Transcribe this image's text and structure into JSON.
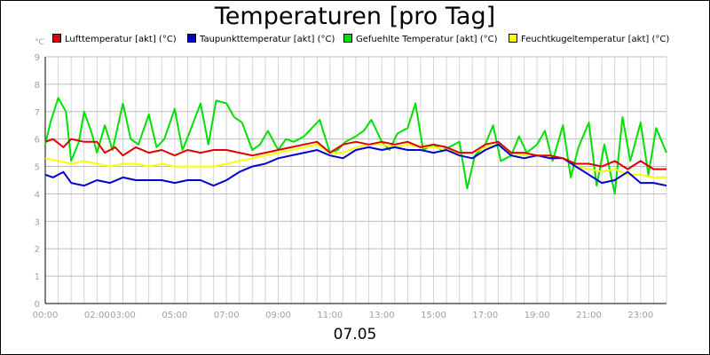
{
  "chart_data": {
    "type": "line",
    "title": "Temperaturen [pro Tag]",
    "y_unit": "°C",
    "date": "07.05",
    "ylim": [
      0,
      9
    ],
    "y_ticks": [
      "0",
      "1",
      "2",
      "3",
      "4",
      "5",
      "6",
      "7",
      "8",
      "9"
    ],
    "xlim": [
      0,
      24
    ],
    "x_ticks": [
      {
        "label": "00:00",
        "at": 0
      },
      {
        "label": "02:00",
        "at": 2
      },
      {
        "label": "03:00",
        "at": 3
      },
      {
        "label": "05:00",
        "at": 5
      },
      {
        "label": "07:00",
        "at": 7
      },
      {
        "label": "09:00",
        "at": 9
      },
      {
        "label": "11:00",
        "at": 11
      },
      {
        "label": "13:00",
        "at": 13
      },
      {
        "label": "15:00",
        "at": 15
      },
      {
        "label": "17:00",
        "at": 17
      },
      {
        "label": "19:00",
        "at": 19
      },
      {
        "label": "21:00",
        "at": 21
      },
      {
        "label": "23:00",
        "at": 23
      }
    ],
    "grid": true,
    "legend_position": "top",
    "series": [
      {
        "name": "Lufttemperatur [akt] (°C)",
        "color": "#e00000",
        "x": [
          0,
          0.3,
          0.7,
          1,
          1.5,
          2,
          2.3,
          2.7,
          3,
          3.5,
          4,
          4.5,
          5,
          5.5,
          6,
          6.5,
          7,
          7.5,
          8,
          8.5,
          9,
          9.5,
          10,
          10.5,
          11,
          11.5,
          12,
          12.5,
          13,
          13.5,
          14,
          14.5,
          15,
          15.5,
          16,
          16.5,
          17,
          17.5,
          18,
          18.5,
          19,
          19.5,
          20,
          20.5,
          21,
          21.5,
          22,
          22.5,
          23,
          23.5,
          24
        ],
        "y": [
          5.9,
          6.0,
          5.7,
          6.0,
          5.9,
          5.9,
          5.5,
          5.7,
          5.4,
          5.7,
          5.5,
          5.6,
          5.4,
          5.6,
          5.5,
          5.6,
          5.6,
          5.5,
          5.4,
          5.5,
          5.6,
          5.7,
          5.8,
          5.9,
          5.5,
          5.8,
          5.9,
          5.8,
          5.9,
          5.8,
          5.9,
          5.7,
          5.8,
          5.7,
          5.5,
          5.5,
          5.8,
          5.9,
          5.5,
          5.5,
          5.4,
          5.4,
          5.3,
          5.1,
          5.1,
          5.0,
          5.2,
          4.9,
          5.2,
          4.9,
          4.9
        ]
      },
      {
        "name": "Taupunkttemperatur [akt] (°C)",
        "color": "#0000d0",
        "x": [
          0,
          0.3,
          0.7,
          1,
          1.5,
          2,
          2.5,
          3,
          3.5,
          4,
          4.5,
          5,
          5.5,
          6,
          6.5,
          7,
          7.5,
          8,
          8.5,
          9,
          9.5,
          10,
          10.5,
          11,
          11.5,
          12,
          12.5,
          13,
          13.5,
          14,
          14.5,
          15,
          15.5,
          16,
          16.5,
          17,
          17.5,
          18,
          18.5,
          19,
          19.5,
          20,
          20.5,
          21,
          21.5,
          22,
          22.5,
          23,
          23.5,
          24
        ],
        "y": [
          4.7,
          4.6,
          4.8,
          4.4,
          4.3,
          4.5,
          4.4,
          4.6,
          4.5,
          4.5,
          4.5,
          4.4,
          4.5,
          4.5,
          4.3,
          4.5,
          4.8,
          5.0,
          5.1,
          5.3,
          5.4,
          5.5,
          5.6,
          5.4,
          5.3,
          5.6,
          5.7,
          5.6,
          5.7,
          5.6,
          5.6,
          5.5,
          5.6,
          5.4,
          5.3,
          5.6,
          5.8,
          5.4,
          5.3,
          5.4,
          5.3,
          5.3,
          5.0,
          4.7,
          4.4,
          4.5,
          4.8,
          4.4,
          4.4,
          4.3
        ]
      },
      {
        "name": "Gefuehlte Temperatur [akt] (°C)",
        "color": "#00e000",
        "x": [
          0,
          0.2,
          0.5,
          0.8,
          1,
          1.3,
          1.5,
          1.8,
          2,
          2.3,
          2.6,
          3,
          3.3,
          3.6,
          4,
          4.3,
          4.6,
          5,
          5.3,
          5.6,
          6,
          6.3,
          6.6,
          7,
          7.3,
          7.6,
          8,
          8.3,
          8.6,
          9,
          9.3,
          9.6,
          10,
          10.3,
          10.6,
          11,
          11.3,
          11.6,
          12,
          12.3,
          12.6,
          13,
          13.3,
          13.6,
          14,
          14.3,
          14.6,
          15,
          15.3,
          15.6,
          16,
          16.3,
          16.6,
          17,
          17.3,
          17.6,
          18,
          18.3,
          18.6,
          19,
          19.3,
          19.6,
          20,
          20.3,
          20.6,
          21,
          21.3,
          21.6,
          22,
          22.3,
          22.6,
          23,
          23.3,
          23.6,
          24
        ],
        "y": [
          5.8,
          6.6,
          7.5,
          7.0,
          5.2,
          5.9,
          7.0,
          6.2,
          5.5,
          6.5,
          5.6,
          7.3,
          6.0,
          5.8,
          6.9,
          5.7,
          6.0,
          7.1,
          5.6,
          6.3,
          7.3,
          5.8,
          7.4,
          7.3,
          6.8,
          6.6,
          5.6,
          5.8,
          6.3,
          5.6,
          6.0,
          5.9,
          6.1,
          6.4,
          6.7,
          5.5,
          5.6,
          5.9,
          6.1,
          6.3,
          6.7,
          5.9,
          5.6,
          6.2,
          6.4,
          7.3,
          5.6,
          5.8,
          5.6,
          5.7,
          5.9,
          4.2,
          5.4,
          5.8,
          6.5,
          5.2,
          5.4,
          6.1,
          5.5,
          5.8,
          6.3,
          5.2,
          6.5,
          4.6,
          5.7,
          6.6,
          4.3,
          5.8,
          4.0,
          6.8,
          5.2,
          6.6,
          4.7,
          6.4,
          5.5
        ]
      },
      {
        "name": "Feuchtkugeltemperatur [akt] (°C)",
        "color": "#ffff00",
        "x": [
          0,
          0.5,
          1,
          1.5,
          2,
          2.5,
          3,
          3.5,
          4,
          4.5,
          5,
          5.5,
          6,
          6.5,
          7,
          7.5,
          8,
          8.5,
          9,
          9.5,
          10,
          10.5,
          11,
          11.5,
          12,
          12.5,
          13,
          13.5,
          14,
          14.5,
          15,
          15.5,
          16,
          16.5,
          17,
          17.5,
          18,
          18.5,
          19,
          19.5,
          20,
          20.5,
          21,
          21.5,
          22,
          22.5,
          23,
          23.5,
          24
        ],
        "y": [
          5.3,
          5.2,
          5.1,
          5.2,
          5.1,
          5.0,
          5.1,
          5.1,
          5.0,
          5.1,
          5.0,
          5.0,
          5.0,
          5.0,
          5.1,
          5.2,
          5.3,
          5.4,
          5.5,
          5.6,
          5.7,
          5.8,
          5.5,
          5.5,
          5.7,
          5.8,
          5.8,
          5.7,
          5.8,
          5.7,
          5.7,
          5.6,
          5.5,
          5.5,
          5.7,
          5.8,
          5.5,
          5.4,
          5.4,
          5.4,
          5.3,
          5.0,
          4.9,
          4.8,
          4.9,
          4.7,
          4.7,
          4.6,
          4.6
        ]
      }
    ]
  }
}
